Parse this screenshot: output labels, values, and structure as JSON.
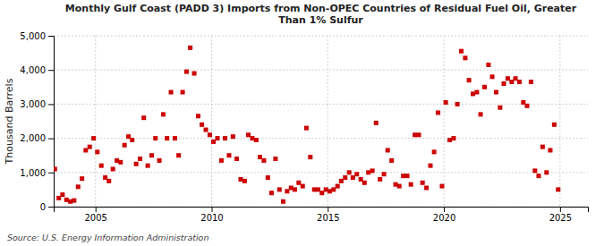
{
  "chart_data": {
    "type": "scatter",
    "title": "Monthly Gulf Coast (PADD 3) Imports from Non-OPEC Countries of Residual Fuel Oil, Greater\nThan 1% Sulfur",
    "y_label": "Thousand Barrels",
    "annotations": [
      "Source: U.S. Energy Information Administration"
    ],
    "color": "#cc0000",
    "marker": "square",
    "grid": true,
    "xlim": [
      2003.2,
      2026.2
    ],
    "ylim": [
      0,
      5000
    ],
    "xticks": [
      2005,
      2010,
      2015,
      2020,
      2025
    ],
    "yticks": [
      0,
      {
        "value": 1000,
        "label": "1,000"
      },
      {
        "value": 2000,
        "label": "2,000"
      },
      {
        "value": 3000,
        "label": "3,000"
      },
      {
        "value": 4000,
        "label": "4,000"
      },
      {
        "value": 5000,
        "label": "5,000"
      }
    ],
    "x": [
      2003.25,
      2003.42,
      2003.58,
      2003.75,
      2003.92,
      2004.08,
      2004.25,
      2004.42,
      2004.58,
      2004.75,
      2004.92,
      2005.08,
      2005.25,
      2005.42,
      2005.58,
      2005.75,
      2005.92,
      2006.08,
      2006.25,
      2006.42,
      2006.58,
      2006.75,
      2006.92,
      2007.08,
      2007.25,
      2007.42,
      2007.58,
      2007.75,
      2007.92,
      2008.08,
      2008.25,
      2008.42,
      2008.58,
      2008.75,
      2008.92,
      2009.08,
      2009.25,
      2009.42,
      2009.58,
      2009.75,
      2009.92,
      2010.08,
      2010.25,
      2010.42,
      2010.58,
      2010.75,
      2010.92,
      2011.08,
      2011.25,
      2011.42,
      2011.58,
      2011.75,
      2011.92,
      2012.08,
      2012.25,
      2012.42,
      2012.58,
      2012.75,
      2012.92,
      2013.08,
      2013.25,
      2013.42,
      2013.58,
      2013.75,
      2013.92,
      2014.08,
      2014.25,
      2014.42,
      2014.58,
      2014.75,
      2014.92,
      2015.08,
      2015.25,
      2015.42,
      2015.58,
      2015.75,
      2015.92,
      2016.08,
      2016.25,
      2016.42,
      2016.58,
      2016.75,
      2016.92,
      2017.08,
      2017.25,
      2017.42,
      2017.58,
      2017.75,
      2017.92,
      2018.08,
      2018.25,
      2018.42,
      2018.58,
      2018.75,
      2018.92,
      2019.08,
      2019.25,
      2019.42,
      2019.58,
      2019.75,
      2019.92,
      2020.08,
      2020.25,
      2020.42,
      2020.58,
      2020.75,
      2020.92,
      2021.08,
      2021.25,
      2021.42,
      2021.58,
      2021.75,
      2021.92,
      2022.08,
      2022.25,
      2022.42,
      2022.58,
      2022.75,
      2022.92,
      2023.08,
      2023.25,
      2023.42,
      2023.58,
      2023.75,
      2023.92,
      2024.08,
      2024.25,
      2024.42,
      2024.58,
      2024.75,
      2024.92
    ],
    "values": [
      1100,
      250,
      350,
      200,
      150,
      180,
      580,
      820,
      1650,
      1750,
      2000,
      1600,
      1200,
      850,
      750,
      1100,
      1350,
      1300,
      1800,
      2050,
      1950,
      1250,
      1400,
      2600,
      1200,
      1500,
      2000,
      1350,
      2700,
      2000,
      3350,
      2000,
      1500,
      3350,
      3950,
      4650,
      3900,
      2650,
      2400,
      2250,
      2100,
      1900,
      2000,
      1350,
      2000,
      1500,
      2050,
      1400,
      800,
      750,
      2100,
      2000,
      1950,
      1450,
      1350,
      850,
      400,
      1400,
      500,
      150,
      450,
      550,
      500,
      700,
      600,
      2300,
      1450,
      500,
      500,
      400,
      500,
      450,
      500,
      600,
      750,
      850,
      1000,
      850,
      950,
      800,
      700,
      1000,
      1050,
      2450,
      800,
      950,
      1650,
      1350,
      650,
      600,
      900,
      900,
      650,
      2100,
      2100,
      700,
      550,
      1200,
      1600,
      2750,
      600,
      3050,
      1950,
      2000,
      3000,
      4550,
      4350,
      3700,
      3300,
      3350,
      2700,
      3500,
      4150,
      3800,
      3350,
      2900,
      3600,
      3750,
      3650,
      3750,
      3650,
      3050,
      2950,
      3650,
      1050,
      900,
      1750,
      1000,
      1650,
      2400,
      500
    ]
  }
}
